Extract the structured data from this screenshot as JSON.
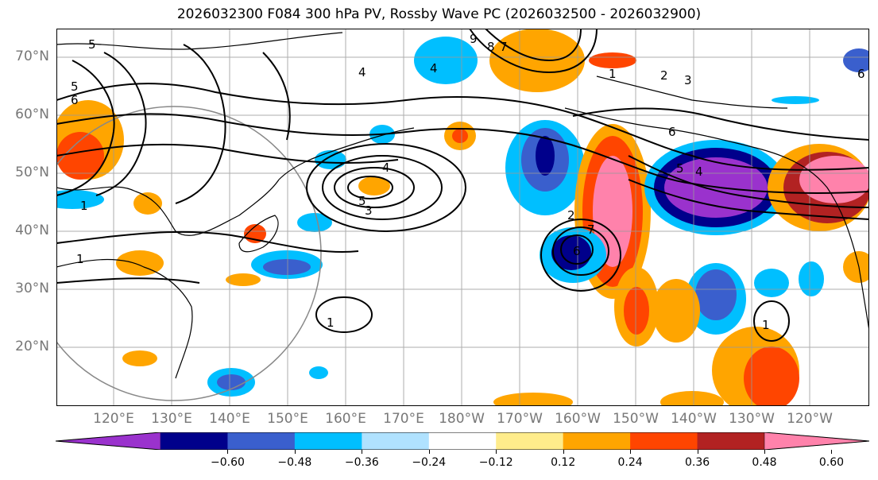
{
  "title": "2026032300 F084 300 hPa PV, Rossby Wave PC (2026032500 - 2026032900)",
  "map": {
    "lat_labels": [
      "70°N",
      "60°N",
      "50°N",
      "40°N",
      "30°N",
      "20°N"
    ],
    "lon_labels": [
      "120°E",
      "130°E",
      "140°E",
      "150°E",
      "160°E",
      "170°E",
      "180°W",
      "170°W",
      "160°W",
      "150°W",
      "140°W",
      "130°W",
      "120°W"
    ],
    "contour_labels": [
      "1",
      "2",
      "3",
      "4",
      "5",
      "6",
      "7",
      "8",
      "9"
    ]
  },
  "colorbar": {
    "ticks": [
      "−0.60",
      "−0.48",
      "−0.36",
      "−0.24",
      "−0.12",
      "0.12",
      "0.24",
      "0.36",
      "0.48",
      "0.60"
    ],
    "colors": [
      "#9a32cd",
      "#00008b",
      "#3a5fcd",
      "#00bfff",
      "#b0e2ff",
      "#ffffff",
      "#ffec8b",
      "#ffa500",
      "#ff4500",
      "#b22222",
      "#ff82ab"
    ]
  }
}
